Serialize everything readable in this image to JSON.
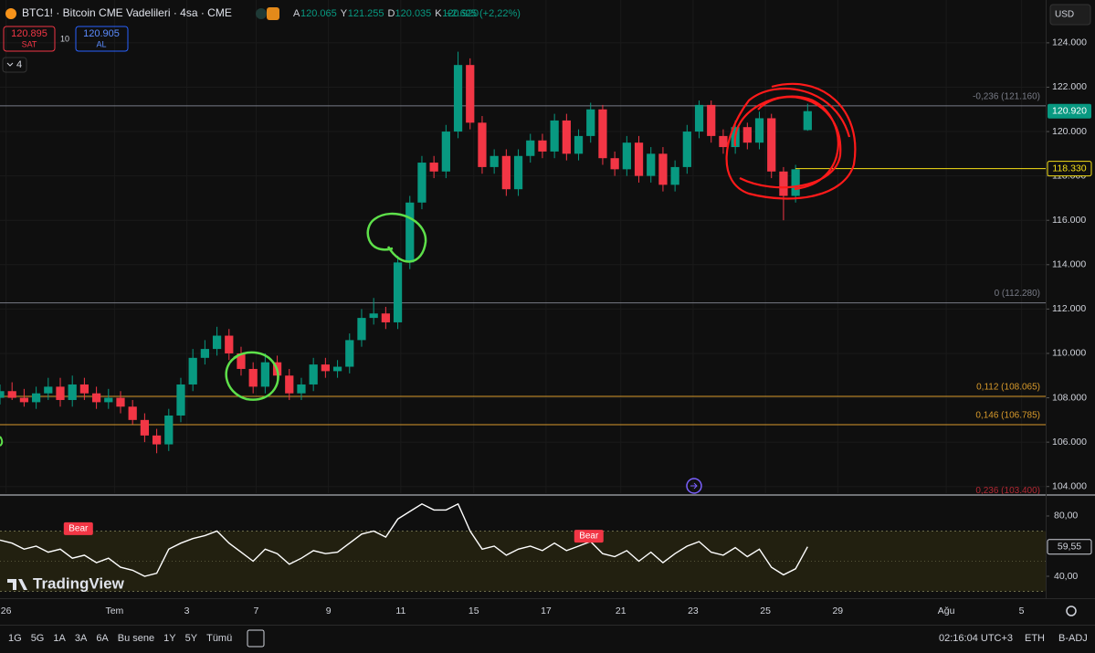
{
  "header": {
    "symbol": "BTC1! · Bitcoin CME Vadelileri · 4sa · CME",
    "ohlc": [
      {
        "key": "A",
        "value": "120.065"
      },
      {
        "key": "Y",
        "value": "121.255"
      },
      {
        "key": "D",
        "value": "120.035"
      },
      {
        "key": "K",
        "value": "120.920"
      }
    ],
    "change": "+2.625 (+2,22%)",
    "sell": {
      "price": "120.895",
      "label": "SAT"
    },
    "spread": "10",
    "buy": {
      "price": "120.905",
      "label": "AL"
    },
    "indicators": "4",
    "currency": "USD",
    "logo": "TradingView"
  },
  "toolbar": {
    "ranges": [
      "1G",
      "5G",
      "1A",
      "3A",
      "6A",
      "Bu sene",
      "1Y",
      "5Y",
      "Tümü"
    ],
    "time": "02:16:04 UTC+3",
    "session": "ETH",
    "adjust": "B-ADJ"
  },
  "chart_data": [
    {
      "type": "candlestick",
      "up_color": "#089981",
      "down_color": "#f23645",
      "x": [
        0,
        2,
        4,
        6,
        8,
        10,
        12,
        14,
        16,
        18,
        20,
        22,
        24,
        26,
        28,
        30,
        32,
        34,
        36,
        38,
        40,
        42,
        44,
        46,
        48,
        50,
        52,
        54,
        56,
        58,
        60,
        62,
        64,
        66,
        68,
        70,
        72,
        74,
        76,
        78,
        80,
        82,
        84,
        86,
        88,
        90,
        92,
        94,
        96,
        98,
        100,
        102,
        104,
        106,
        108,
        110,
        112,
        114,
        116,
        118,
        120,
        122,
        124,
        126,
        128,
        130,
        132,
        134
      ],
      "open": [
        108.0,
        108.3,
        108.0,
        107.8,
        108.2,
        108.5,
        107.9,
        108.6,
        108.2,
        107.8,
        108.0,
        107.6,
        107.0,
        106.3,
        105.9,
        107.2,
        108.6,
        109.8,
        110.2,
        110.8,
        110.0,
        109.3,
        108.5,
        109.6,
        109.0,
        108.2,
        108.6,
        109.5,
        109.2,
        109.4,
        110.6,
        111.6,
        111.8,
        111.4,
        114.1,
        116.8,
        118.6,
        118.2,
        120.0,
        123.0,
        120.4,
        118.4,
        118.9,
        117.4,
        118.9,
        119.6,
        119.1,
        120.5,
        119.0,
        119.8,
        121.0,
        118.8,
        118.3,
        119.5,
        118.0,
        119.0,
        117.6,
        118.4,
        120.0,
        121.2,
        119.8,
        119.3,
        120.2,
        119.5,
        120.6,
        118.2,
        117.1,
        120.065
      ],
      "high": [
        108.6,
        108.7,
        108.4,
        108.5,
        108.9,
        108.9,
        109.0,
        108.9,
        108.5,
        108.4,
        108.3,
        107.9,
        107.3,
        106.6,
        107.5,
        108.9,
        110.2,
        110.6,
        111.2,
        111.1,
        110.3,
        109.6,
        110.0,
        109.9,
        109.3,
        108.9,
        109.8,
        109.8,
        109.7,
        110.9,
        112.0,
        112.5,
        112.1,
        114.4,
        117.1,
        118.9,
        118.9,
        120.3,
        123.6,
        123.3,
        120.7,
        119.2,
        119.2,
        119.2,
        119.9,
        119.9,
        120.8,
        120.8,
        120.1,
        121.3,
        121.2,
        119.1,
        119.8,
        119.8,
        119.3,
        119.3,
        118.7,
        120.3,
        121.4,
        121.4,
        120.1,
        120.5,
        120.4,
        120.9,
        120.8,
        118.4,
        118.5,
        121.255
      ],
      "low": [
        107.7,
        107.9,
        107.6,
        107.5,
        107.9,
        107.6,
        107.6,
        107.9,
        107.5,
        107.5,
        107.3,
        106.8,
        106.0,
        105.5,
        105.6,
        106.9,
        108.3,
        109.5,
        109.9,
        109.7,
        109.0,
        108.2,
        108.2,
        108.7,
        107.9,
        107.9,
        108.3,
        108.9,
        108.9,
        109.1,
        110.3,
        111.3,
        111.1,
        111.1,
        113.8,
        116.5,
        117.9,
        117.9,
        119.7,
        120.1,
        118.1,
        118.1,
        117.1,
        117.1,
        118.6,
        118.8,
        118.8,
        118.7,
        118.7,
        119.5,
        118.5,
        118.0,
        118.0,
        117.7,
        117.7,
        117.3,
        117.3,
        118.1,
        119.7,
        119.5,
        119.0,
        119.0,
        119.2,
        119.2,
        117.9,
        116.0,
        116.8,
        120.035
      ],
      "close": [
        108.3,
        108.0,
        107.8,
        108.2,
        108.5,
        107.9,
        108.6,
        108.2,
        107.8,
        108.0,
        107.6,
        107.0,
        106.3,
        105.9,
        107.2,
        108.6,
        109.8,
        110.2,
        110.8,
        110.0,
        109.3,
        108.5,
        109.6,
        109.0,
        108.2,
        108.6,
        109.5,
        109.2,
        109.4,
        110.6,
        111.6,
        111.8,
        111.4,
        114.1,
        116.8,
        118.6,
        118.2,
        120.0,
        123.0,
        120.4,
        118.4,
        118.9,
        117.4,
        118.9,
        119.6,
        119.1,
        120.5,
        119.0,
        119.8,
        121.0,
        118.8,
        118.3,
        119.5,
        118.0,
        119.0,
        117.6,
        118.4,
        120.0,
        121.2,
        119.8,
        119.3,
        120.2,
        119.5,
        120.6,
        118.2,
        117.1,
        118.3,
        120.92
      ],
      "xlim": [
        0,
        173.5
      ],
      "xticks": [
        {
          "value": 1,
          "label": "26"
        },
        {
          "value": 19,
          "label": "Tem"
        },
        {
          "value": 31,
          "label": "3"
        },
        {
          "value": 42.5,
          "label": "7"
        },
        {
          "value": 54.5,
          "label": "9"
        },
        {
          "value": 66.5,
          "label": "11"
        },
        {
          "value": 78.6,
          "label": "15"
        },
        {
          "value": 90.6,
          "label": "17"
        },
        {
          "value": 103,
          "label": "21"
        },
        {
          "value": 115,
          "label": "23"
        },
        {
          "value": 127,
          "label": "25"
        },
        {
          "value": 139,
          "label": "29"
        },
        {
          "value": 157,
          "label": "Ağu"
        },
        {
          "value": 169.5,
          "label": "5"
        }
      ],
      "ylim": [
        103.7,
        125.93
      ],
      "yticks": [
        {
          "value": 104,
          "label": "104.000"
        },
        {
          "value": 106,
          "label": "106.000"
        },
        {
          "value": 108,
          "label": "108.000"
        },
        {
          "value": 110,
          "label": "110.000"
        },
        {
          "value": 112,
          "label": "112.000"
        },
        {
          "value": 114,
          "label": "114.000"
        },
        {
          "value": 116,
          "label": "116.000"
        },
        {
          "value": 118,
          "label": "118.000"
        },
        {
          "value": 120,
          "label": "120.000"
        },
        {
          "value": 122,
          "label": "122.000"
        },
        {
          "value": 124,
          "label": "124.000"
        }
      ],
      "levels": [
        {
          "value": 121.16,
          "label": "-0,236 (121.160)",
          "color": "#787b86"
        },
        {
          "value": 112.28,
          "label": "0 (112.280)",
          "color": "#787b86"
        },
        {
          "value": 108.065,
          "label": "0,112 (108.065)",
          "color": "#d89a2b"
        },
        {
          "value": 106.785,
          "label": "0,146 (106.785)",
          "color": "#d89a2b"
        },
        {
          "value": 103.4,
          "label": "0,236 (103.400)",
          "color": "#b22833"
        }
      ],
      "last_price": {
        "value": 120.92,
        "label": "120.920",
        "color": "#089981"
      },
      "line_price": {
        "value": 118.33,
        "label": "118.330",
        "color": "#f7e017"
      }
    },
    {
      "type": "line",
      "color": "#ffffff",
      "x": [
        0,
        2,
        4,
        6,
        8,
        10,
        12,
        14,
        16,
        18,
        20,
        22,
        24,
        26,
        28,
        30,
        32,
        34,
        36,
        38,
        40,
        42,
        44,
        46,
        48,
        50,
        52,
        54,
        56,
        58,
        60,
        62,
        64,
        66,
        68,
        70,
        72,
        74,
        76,
        78,
        80,
        82,
        84,
        86,
        88,
        90,
        92,
        94,
        96,
        98,
        100,
        102,
        104,
        106,
        108,
        110,
        112,
        114,
        116,
        118,
        120,
        122,
        124,
        126,
        128,
        130,
        132,
        134
      ],
      "values": [
        64,
        62,
        58,
        60,
        56,
        58,
        52,
        54,
        49,
        52,
        46,
        44,
        40,
        42,
        58,
        62,
        65,
        67,
        70,
        62,
        56,
        50,
        58,
        55,
        48,
        52,
        57,
        55,
        56,
        62,
        68,
        70,
        66,
        78,
        83,
        88,
        84,
        84,
        88,
        70,
        58,
        60,
        54,
        58,
        60,
        57,
        62,
        57,
        60,
        63,
        55,
        53,
        57,
        50,
        56,
        49,
        55,
        60,
        63,
        56,
        54,
        59,
        53,
        58,
        46,
        41,
        45,
        59.55
      ],
      "xlim": [
        0,
        173.5
      ],
      "ylim": [
        28.5,
        93.3
      ],
      "yticks": [
        {
          "value": 80,
          "label": "80,00"
        },
        {
          "value": 40,
          "label": "40,00"
        }
      ],
      "band": [
        30,
        70
      ],
      "midline": 50,
      "last_value": {
        "value": 59.55,
        "label": "59,55"
      },
      "annotations": [
        {
          "label": "Bear",
          "x": 13,
          "value": 71
        },
        {
          "label": "Bear",
          "x": 97.7,
          "value": 66
        }
      ]
    }
  ]
}
